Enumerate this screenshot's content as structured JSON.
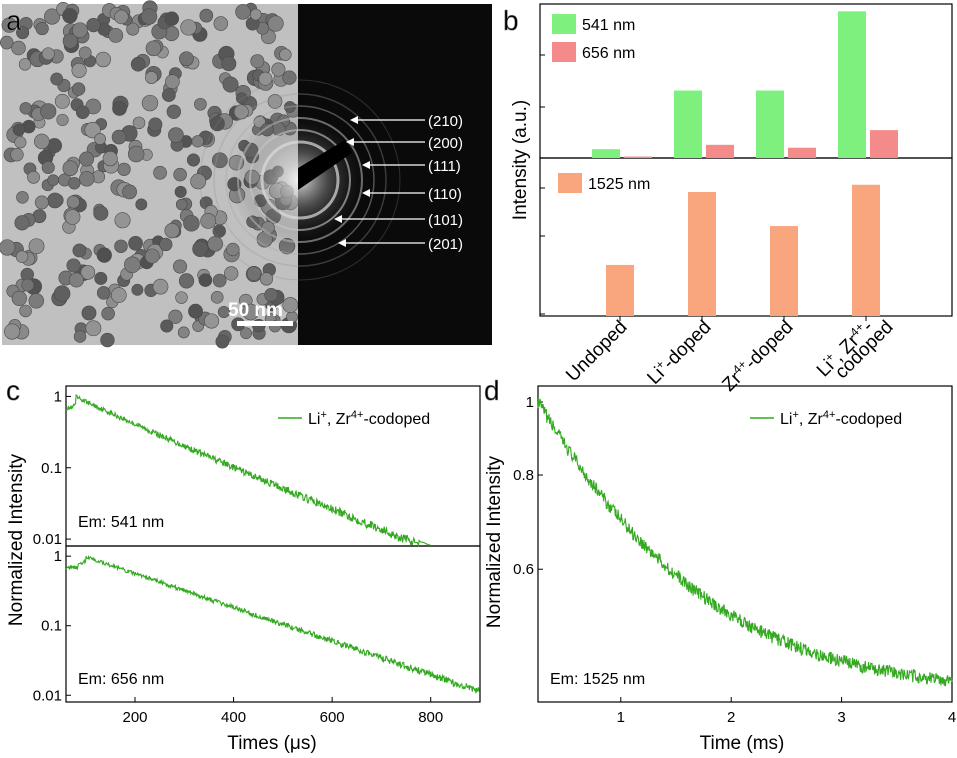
{
  "figure": {
    "panel_labels": [
      "a",
      "b",
      "c",
      "d"
    ]
  },
  "panel_a": {
    "scale_bar": "50 nm",
    "diffraction_rings": [
      "(210)",
      "(200)",
      "(111)",
      "(110)",
      "(101)",
      "(201)"
    ],
    "image_description_colors": {
      "tem_bg": "#bcbcbc",
      "particle": "#6e6e6e",
      "saed_bg": "#0a0a0a"
    }
  },
  "chart_data": [
    {
      "id": "b-top",
      "type": "bar",
      "title": "",
      "ylabel": "Intensity (a.u.)",
      "categories": [
        "Undoped",
        "Li+-doped",
        "Zr4+-doped",
        "Li+, Zr4+-codoped"
      ],
      "series": [
        {
          "name": "541 nm",
          "color": "#7ef07e",
          "values": [
            0.06,
            0.46,
            0.46,
            1.0
          ]
        },
        {
          "name": "656 nm",
          "color": "#f58a8a",
          "values": [
            0.01,
            0.09,
            0.07,
            0.19
          ]
        }
      ],
      "ylim": [
        0,
        1.05
      ],
      "legend": "top-left"
    },
    {
      "id": "b-bottom",
      "type": "bar",
      "categories": [
        "Undoped",
        "Li+-doped",
        "Zr4+-doped",
        "Li+, Zr4+-codoped"
      ],
      "series": [
        {
          "name": "1525 nm",
          "color": "#f9a57d",
          "values": [
            0.42,
            1.02,
            0.74,
            1.08
          ]
        }
      ],
      "ylim": [
        0,
        1.3
      ],
      "legend": "top-left"
    },
    {
      "id": "c-top",
      "type": "line",
      "scale": "log",
      "xlim": [
        60,
        900
      ],
      "ylim": [
        0.008,
        1.4
      ],
      "yticks": [
        "0.01",
        "0.1",
        "1"
      ],
      "legend_html": "Li<tspan baseline-shift='super' font-size='11'>+</tspan>, Zr<tspan baseline-shift='super' font-size='11'>4+</tspan>-codoped",
      "annotation": "Em: 541 nm",
      "series": [
        {
          "name": "Li+, Zr4+-codoped",
          "color": "#33a820",
          "peak_x": 80,
          "rise": 15,
          "tau1": 110,
          "tau2": 160,
          "weight2": 0.6,
          "noise": 0.06
        }
      ]
    },
    {
      "id": "c-bottom",
      "type": "line",
      "scale": "log",
      "xlim": [
        60,
        900
      ],
      "xticks": [
        200,
        400,
        600,
        800
      ],
      "xlabel": "Times (μs)",
      "ylim": [
        0.008,
        1.4
      ],
      "yticks": [
        "0.01",
        "0.1",
        "1"
      ],
      "annotation": "Em: 656 nm",
      "series": [
        {
          "name": "656 nm",
          "color": "#33a820",
          "peak_x": 100,
          "rise": 22,
          "tau1": 170,
          "tau2": 185,
          "weight2": 0.6,
          "noise": 0.05
        }
      ]
    },
    {
      "id": "d",
      "type": "line",
      "scale": "log",
      "xlim": [
        0.25,
        4.0
      ],
      "xticks": [
        1,
        2,
        3,
        4
      ],
      "xlabel": "Time (ms)",
      "ylim": [
        0.4,
        1.05
      ],
      "yticks": [
        "0.6",
        "0.8",
        "1"
      ],
      "ylabel": "Normalized Intensity",
      "legend_html": "Li<tspan baseline-shift='super' font-size='11'>+</tspan>, Zr<tspan baseline-shift='super' font-size='11'>4+</tspan>-codoped",
      "annotation": "Em: 1525 nm",
      "series": [
        {
          "name": "Li+, Zr4+-codoped",
          "color": "#33a820",
          "decay": [
            0.41,
            0.59,
            1.05
          ],
          "noise": 0.025
        }
      ]
    }
  ],
  "panel_c": {
    "ylabel": "Normalized Intensity"
  },
  "category_labels": {
    "undoped": "Undoped",
    "li": "Li",
    "li_sup": "+",
    "doped": "-doped",
    "zr": "Zr",
    "zr_sup": "4+",
    "co1": "Li",
    "co1_sup": "+",
    "co2": ", Zr",
    "co2_sup": "4+",
    "co3": "-",
    "co4": "codoped"
  }
}
